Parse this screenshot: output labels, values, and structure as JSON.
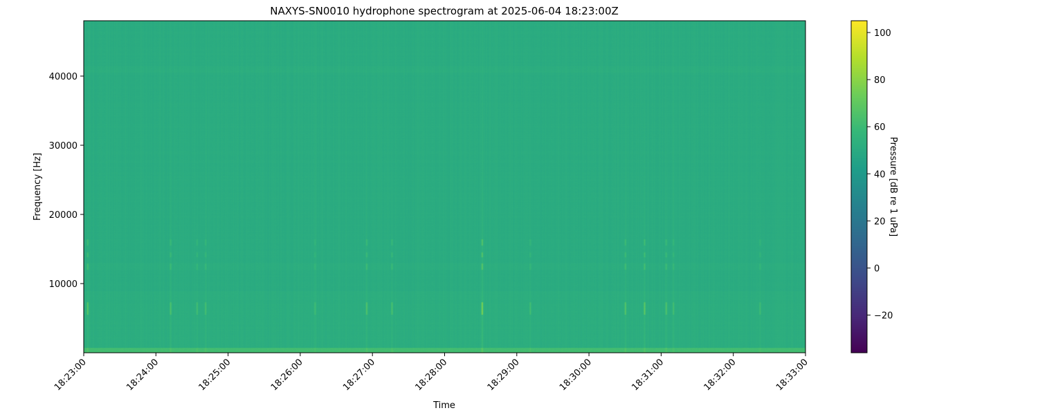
{
  "chart_data": {
    "type": "heatmap",
    "title": "NAXYS-SN0010 hydrophone spectrogram at 2025-06-04 18:23:00Z",
    "xlabel": "Time",
    "ylabel": "Frequency [Hz]",
    "colorbar_label": "Pressure [dB re 1 uPa]",
    "colormap": "viridis",
    "xlim": [
      "18:23:00",
      "18:33:00"
    ],
    "ylim": [
      0,
      48000
    ],
    "clim": [
      -36,
      105
    ],
    "x_ticks": [
      "18:23:00",
      "18:24:00",
      "18:25:00",
      "18:26:00",
      "18:27:00",
      "18:28:00",
      "18:29:00",
      "18:30:00",
      "18:31:00",
      "18:32:00",
      "18:33:00"
    ],
    "y_ticks": [
      10000,
      20000,
      30000,
      40000
    ],
    "y_tick_labels": [
      "10000",
      "20000",
      "30000",
      "40000"
    ],
    "colorbar_ticks": [
      -20,
      0,
      20,
      40,
      60,
      80,
      100
    ],
    "colorbar_tick_labels": [
      "−20",
      "0",
      "20",
      "40",
      "60",
      "80",
      "100"
    ],
    "background_level_db": 51,
    "low_frequency_band_db": 62,
    "events": [
      {
        "time": "18:23:03",
        "peak_db": 66
      },
      {
        "time": "18:24:12",
        "peak_db": 62
      },
      {
        "time": "18:24:34",
        "peak_db": 60
      },
      {
        "time": "18:24:41",
        "peak_db": 60
      },
      {
        "time": "18:26:12",
        "peak_db": 58
      },
      {
        "time": "18:26:55",
        "peak_db": 63
      },
      {
        "time": "18:27:16",
        "peak_db": 62
      },
      {
        "time": "18:28:31",
        "peak_db": 72
      },
      {
        "time": "18:29:11",
        "peak_db": 60
      },
      {
        "time": "18:30:30",
        "peak_db": 64
      },
      {
        "time": "18:30:46",
        "peak_db": 66
      },
      {
        "time": "18:31:04",
        "peak_db": 63
      },
      {
        "time": "18:31:10",
        "peak_db": 59
      },
      {
        "time": "18:32:22",
        "peak_db": 59
      }
    ],
    "grid": false
  }
}
